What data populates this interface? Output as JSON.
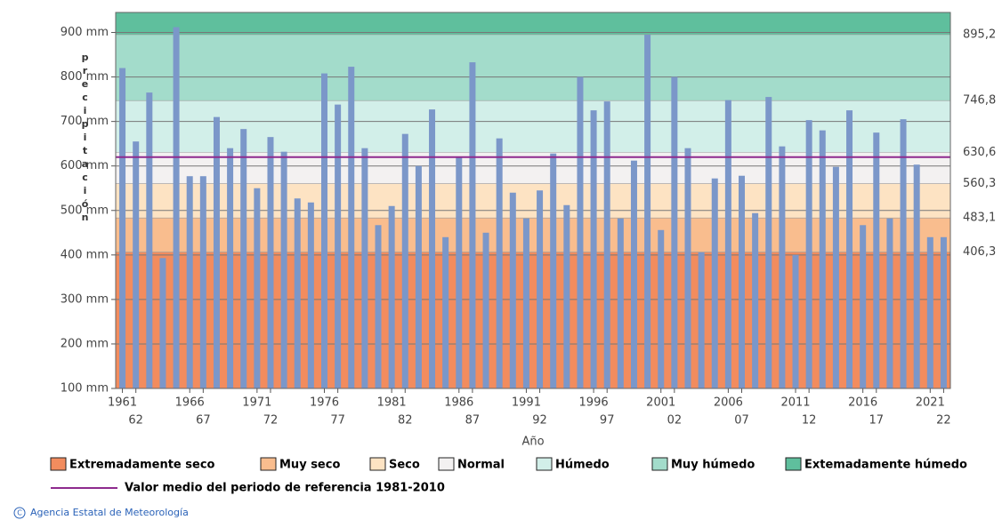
{
  "chart_data": {
    "type": "bar",
    "y_label": "precipitación",
    "x_label": "Año",
    "categories": [
      "1961",
      "62",
      null,
      null,
      null,
      "1966",
      "67",
      null,
      null,
      null,
      "1971",
      "72",
      null,
      null,
      null,
      "1976",
      "77",
      null,
      null,
      null,
      "1981",
      "82",
      null,
      null,
      null,
      "1986",
      "87",
      null,
      null,
      null,
      "1991",
      "92",
      null,
      null,
      null,
      "1996",
      "97",
      null,
      null,
      null,
      "2001",
      "02",
      null,
      null,
      null,
      "2006",
      "07",
      null,
      null,
      null,
      "2011",
      "12",
      null,
      null,
      null,
      "2016",
      "17",
      null,
      null,
      null,
      "2021",
      "22"
    ],
    "values": [
      820,
      655,
      765,
      393,
      912,
      577,
      577,
      710,
      640,
      683,
      550,
      665,
      632,
      527,
      518,
      808,
      738,
      823,
      640,
      467,
      510,
      672,
      600,
      727,
      440,
      620,
      833,
      450,
      662,
      540,
      482,
      545,
      628,
      512,
      800,
      725,
      745,
      482,
      612,
      895,
      456,
      800,
      640,
      406,
      572,
      748,
      578,
      494,
      755,
      644,
      400,
      703,
      680,
      598,
      725,
      467,
      675,
      482,
      705,
      603,
      440,
      440
    ],
    "color": "#7b97c9",
    "ylim": [
      100,
      945
    ],
    "yticks": [
      {
        "value": 100,
        "label": "100 mm"
      },
      {
        "value": 200,
        "label": "200 mm"
      },
      {
        "value": 300,
        "label": "300 mm"
      },
      {
        "value": 400,
        "label": "400 mm"
      },
      {
        "value": 500,
        "label": "500 mm"
      },
      {
        "value": 600,
        "label": "600 mm"
      },
      {
        "value": 700,
        "label": "700 mm"
      },
      {
        "value": 800,
        "label": "800 mm"
      },
      {
        "value": 900,
        "label": "900 mm"
      }
    ],
    "y2ticks": [
      {
        "value": 406.3,
        "label": "406,3"
      },
      {
        "value": 483.1,
        "label": "483,1"
      },
      {
        "value": 560.3,
        "label": "560,3"
      },
      {
        "value": 630.6,
        "label": "630,6"
      },
      {
        "value": 746.8,
        "label": "746,8"
      },
      {
        "value": 895.2,
        "label": "895,2"
      }
    ],
    "bands": [
      {
        "name": "Extremadamente seco",
        "color": "#f28c5e"
      },
      {
        "name": "Muy seco",
        "color": "#f9bd8e"
      },
      {
        "name": "Seco",
        "color": "#fde3c3"
      },
      {
        "name": "Normal",
        "color": "#f3f1f1"
      },
      {
        "name": "Húmedo",
        "color": "#d2efe9"
      },
      {
        "name": "Muy húmedo",
        "color": "#a3dccb"
      },
      {
        "name": "Extemadamente húmedo",
        "color": "#5fbf9d"
      }
    ],
    "mean": {
      "name": "Valor medio del periodo de referencia 1981-2010",
      "value": 620,
      "color": "#8e2a8e"
    },
    "grid": true,
    "source": "Agencia Estatal de Meteorología"
  }
}
